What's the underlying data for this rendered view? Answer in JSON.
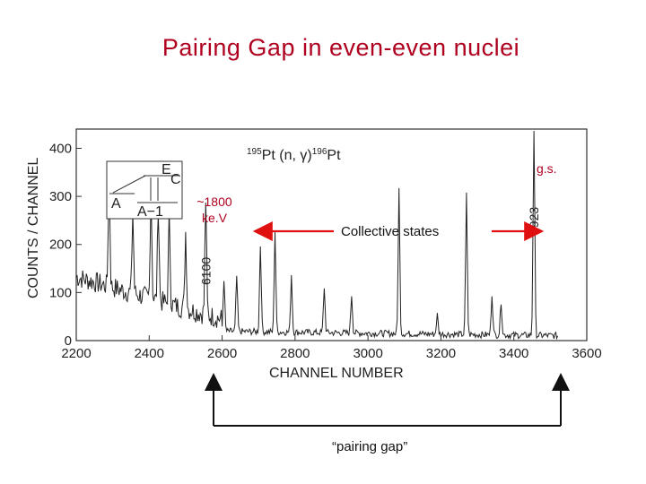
{
  "title": "Pairing Gap in even-even nuclei",
  "chart_data": {
    "type": "line",
    "reaction": {
      "a": "195",
      "target": "Pt",
      "process": "(n, γ)",
      "b": "196",
      "product": "Pt"
    },
    "xlabel": "CHANNEL NUMBER",
    "ylabel": "COUNTS / CHANNEL",
    "xlim": [
      2200,
      3600
    ],
    "ylim": [
      0,
      440
    ],
    "x_ticks": [
      "2200",
      "2400",
      "2600",
      "2800",
      "3000",
      "3200",
      "3400",
      "3600"
    ],
    "y_ticks": [
      "0",
      "100",
      "200",
      "300",
      "400"
    ],
    "peaks": [
      {
        "x": 2290,
        "y": 240
      },
      {
        "x": 2355,
        "y": 170
      },
      {
        "x": 2405,
        "y": 230
      },
      {
        "x": 2425,
        "y": 200
      },
      {
        "x": 2455,
        "y": 180
      },
      {
        "x": 2500,
        "y": 160
      },
      {
        "x": 2555,
        "y": 240
      },
      {
        "x": 2605,
        "y": 110
      },
      {
        "x": 2640,
        "y": 115
      },
      {
        "x": 2705,
        "y": 180
      },
      {
        "x": 2745,
        "y": 210
      },
      {
        "x": 2790,
        "y": 120
      },
      {
        "x": 2880,
        "y": 95
      },
      {
        "x": 2955,
        "y": 80
      },
      {
        "x": 3085,
        "y": 300
      },
      {
        "x": 3190,
        "y": 40
      },
      {
        "x": 3270,
        "y": 290
      },
      {
        "x": 3340,
        "y": 85
      },
      {
        "x": 3365,
        "y": 70
      },
      {
        "x": 3455,
        "y": 450
      }
    ],
    "peak_annotations": [
      {
        "x": 2555,
        "label": "6100"
      },
      {
        "x": 3455,
        "label": "7923"
      }
    ],
    "inset": {
      "labels": [
        "A",
        "A−1",
        "E",
        "C"
      ]
    }
  },
  "annotations": {
    "gs": "g.s.",
    "gap_energy": [
      "~1800",
      "ke.V"
    ],
    "collective": "Collective states",
    "pairing_gap": "“pairing gap”"
  },
  "colors": {
    "title": "#b00020",
    "arrow": "#e01010",
    "bracket": "#111111",
    "trace": "#222222"
  }
}
